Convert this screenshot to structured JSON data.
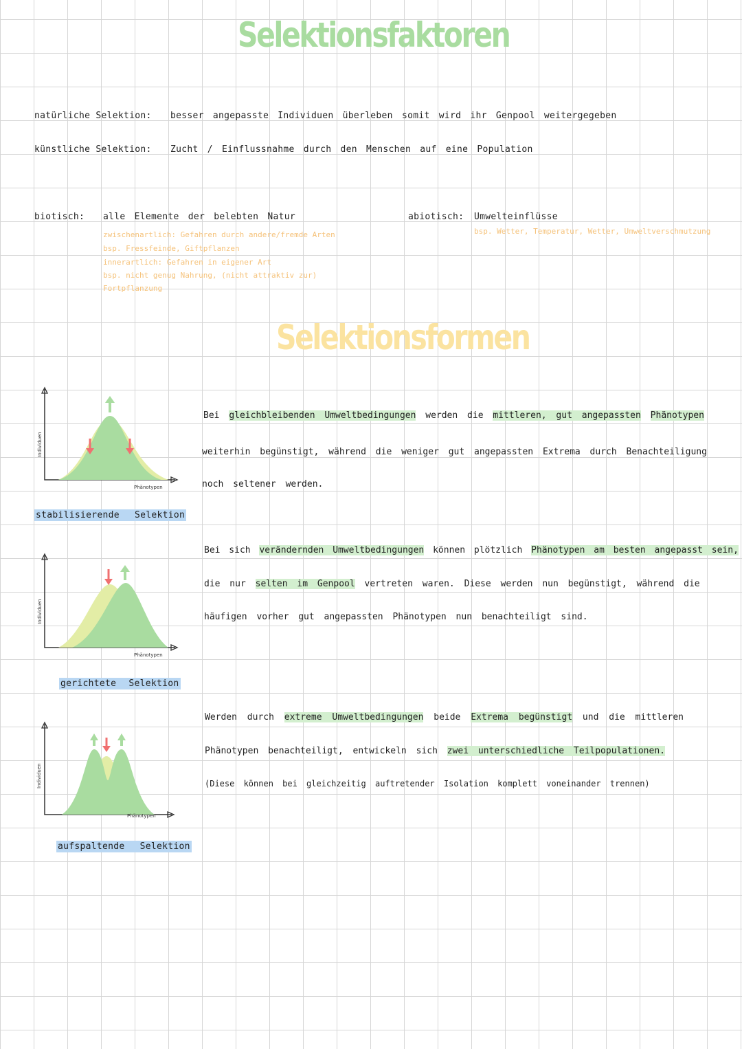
{
  "titles": {
    "faktoren": "Selektionsfaktoren",
    "formen": "Selektionsformen"
  },
  "definitions": {
    "natural_label": "natürliche Selektion:",
    "natural_text": "besser angepasste Individuen überleben somit wird ihr Genpool weitergegeben",
    "artificial_label": "künstliche Selektion:",
    "artificial_text": "Zucht / Einflussnahme durch den Menschen auf eine Population"
  },
  "biotic": {
    "label": "biotisch:",
    "text": "alle Elemente der belebten Natur",
    "notes": [
      "zwischenartlich: Gefahren durch andere/fremde Arten",
      "bsp. Fressfeinde, Giftpflanzen",
      "innerartlich: Gefahren in eigener Art",
      "bsp. nicht genug Nahrung, (nicht attraktiv zur)",
      "Fortpflanzung"
    ]
  },
  "abiotic": {
    "label": "abiotisch:",
    "text": "Umwelteinflüsse",
    "note": "bsp. Wetter, Temperatur, Wetter, Umweltverschmutzung"
  },
  "axis": {
    "y": "Individuen",
    "x": "Phänotypen"
  },
  "forms": [
    {
      "label": "stabilisierende Selektion",
      "lines": [
        "Bei gleichbleibenden Umweltbedingungen werden die mittleren, gut angepassten Phänotypen",
        "weiterhin begünstigt, während die weniger gut angepassten Extrema durch Benachteiligung",
        "noch seltener werden."
      ]
    },
    {
      "label": "gerichtete Selektion",
      "lines": [
        "Bei sich verändernden Umweltbedingungen können plötzlich Phänotypen am besten angepasst sein,",
        "die nur selten im Genpool vertreten waren. Diese werden nun begünstigt, während die",
        "häufigen vorher gut angepassten Phänotypen nun benachteiligt sind."
      ]
    },
    {
      "label": "aufspaltende Selektion",
      "lines": [
        "Werden durch extreme Umweltbedingungen beide Extrema begünstigt und die mittleren",
        "Phänotypen benachteiligt, entwickeln sich zwei unterschiedliche Teilpopulationen.",
        "(Diese können bei gleichzeitig auftretender Isolation komplett voneinander trennen)"
      ]
    }
  ],
  "colors": {
    "green": "#a9dca0",
    "yellow": "#fbe3a0",
    "blue_highlight": "#b9d7f3",
    "red_arrow": "#f07070"
  }
}
